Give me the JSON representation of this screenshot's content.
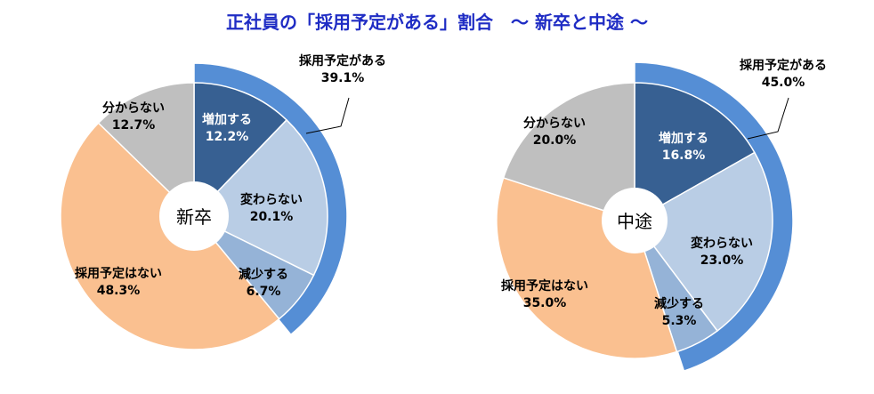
{
  "title": "正社員の「採用予定がある」割合　～ 新卒と中途 ～",
  "colors": {
    "title": "#1f2cc4",
    "outer_ring": "#558ed5",
    "increase": "#376092",
    "unchanged": "#b9cde5",
    "decrease": "#95b3d7",
    "no_plan": "#fac090",
    "unknown": "#bfbfbf",
    "center": "#ffffff"
  },
  "chart_data": [
    {
      "type": "pie",
      "name": "新卒",
      "center_label": "新卒",
      "outer_ring": {
        "label": "採用予定がある",
        "value": 39.1,
        "value_label": "39.1%"
      },
      "slices": [
        {
          "label": "増加する",
          "value": 12.2,
          "value_label": "12.2%",
          "color": "#376092"
        },
        {
          "label": "変わらない",
          "value": 20.1,
          "value_label": "20.1%",
          "color": "#b9cde5"
        },
        {
          "label": "減少する",
          "value": 6.7,
          "value_label": "6.7%",
          "color": "#95b3d7"
        },
        {
          "label": "採用予定はない",
          "value": 48.3,
          "value_label": "48.3%",
          "color": "#fac090"
        },
        {
          "label": "分からない",
          "value": 12.7,
          "value_label": "12.7%",
          "color": "#bfbfbf"
        }
      ]
    },
    {
      "type": "pie",
      "name": "中途",
      "center_label": "中途",
      "outer_ring": {
        "label": "採用予定がある",
        "value": 45.0,
        "value_label": "45.0%"
      },
      "slices": [
        {
          "label": "増加する",
          "value": 16.8,
          "value_label": "16.8%",
          "color": "#376092"
        },
        {
          "label": "変わらない",
          "value": 23.0,
          "value_label": "23.0%",
          "color": "#b9cde5"
        },
        {
          "label": "減少する",
          "value": 5.3,
          "value_label": "5.3%",
          "color": "#95b3d7"
        },
        {
          "label": "採用予定はない",
          "value": 35.0,
          "value_label": "35.0%",
          "color": "#fac090"
        },
        {
          "label": "分からない",
          "value": 20.0,
          "value_label": "20.0%",
          "color": "#bfbfbf"
        }
      ]
    }
  ]
}
